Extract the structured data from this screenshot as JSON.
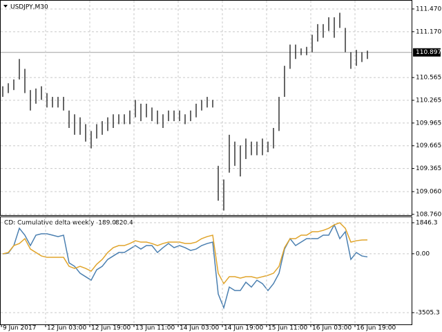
{
  "chart_data": [
    {
      "type": "hilo",
      "title": "USDJPY,M30",
      "color": "#000000",
      "high": [
        110.45,
        110.49,
        110.54,
        110.81,
        110.68,
        110.4,
        110.42,
        110.45,
        110.36,
        110.31,
        110.31,
        110.31,
        110.13,
        110.08,
        110.04,
        109.95,
        109.86,
        109.95,
        109.99,
        110.04,
        110.08,
        110.08,
        110.08,
        110.13,
        110.27,
        110.22,
        110.22,
        110.17,
        110.13,
        110.08,
        110.13,
        110.13,
        110.13,
        110.08,
        110.13,
        110.22,
        110.27,
        110.31,
        110.27,
        109.4,
        109.22,
        109.81,
        109.72,
        109.67,
        109.76,
        109.72,
        109.72,
        109.76,
        109.72,
        109.9,
        110.31,
        110.72,
        111.0,
        111.0,
        110.95,
        110.97,
        111.13,
        111.27,
        111.27,
        111.36,
        111.36,
        111.42,
        111.22,
        110.9,
        110.93,
        110.9,
        110.92
      ],
      "low": [
        110.31,
        110.36,
        110.4,
        110.54,
        110.36,
        110.13,
        110.22,
        110.27,
        110.17,
        110.17,
        110.17,
        110.13,
        109.9,
        109.81,
        109.81,
        109.72,
        109.63,
        109.76,
        109.81,
        109.86,
        109.9,
        109.95,
        109.95,
        109.95,
        110.04,
        109.99,
        110.04,
        109.99,
        109.95,
        109.9,
        109.99,
        109.99,
        109.99,
        109.95,
        109.99,
        110.04,
        110.13,
        110.17,
        110.17,
        108.94,
        108.81,
        109.31,
        109.4,
        109.26,
        109.49,
        109.54,
        109.54,
        109.54,
        109.58,
        109.63,
        109.86,
        110.31,
        110.68,
        110.81,
        110.86,
        110.86,
        110.9,
        111.04,
        111.09,
        111.18,
        111.09,
        111.22,
        110.9,
        110.68,
        110.72,
        110.77,
        110.81
      ],
      "last_price": 110.897,
      "ylim": [
        108.75,
        111.57
      ],
      "yticks": [
        {
          "value": 111.47,
          "label": "111.470"
        },
        {
          "value": 111.17,
          "label": "111.170"
        },
        110.565,
        110.265,
        109.965,
        109.665,
        109.365,
        {
          "value": 109.06,
          "label": "109.060"
        },
        {
          "value": 108.76,
          "label": "108.760"
        }
      ],
      "grid": true
    },
    {
      "type": "line",
      "title": "CD: Cumulative delta weekly",
      "series": [
        {
          "name": "blue",
          "color": "#4a7fb0",
          "last_label": "-189.0",
          "values": [
            -8,
            33,
            486,
            1515,
            1104,
            486,
            1104,
            1186,
            1186,
            1104,
            1021,
            1104,
            -543,
            -749,
            -1161,
            -1367,
            -1573,
            -955,
            -749,
            -338,
            -132,
            74,
            74,
            280,
            486,
            280,
            486,
            486,
            74,
            362,
            610,
            362,
            486,
            362,
            198,
            280,
            486,
            610,
            692,
            -2396,
            -3219,
            -1984,
            -2190,
            -2190,
            -1696,
            -1984,
            -1573,
            -1779,
            -2190,
            -1779,
            -1161,
            280,
            898,
            486,
            692,
            898,
            898,
            898,
            1104,
            1104,
            1721,
            898,
            1309,
            -338,
            74,
            -132,
            -189
          ]
        },
        {
          "name": "orange",
          "color": "#e0a42a",
          "last_label": "820.4",
          "values": [
            -8,
            74,
            486,
            610,
            898,
            280,
            74,
            -132,
            -214,
            -214,
            -214,
            -214,
            -749,
            -873,
            -749,
            -873,
            -1037,
            -626,
            -338,
            74,
            362,
            486,
            486,
            610,
            774,
            692,
            692,
            610,
            486,
            610,
            692,
            692,
            692,
            610,
            610,
            692,
            898,
            1021,
            1104,
            -1161,
            -1779,
            -1367,
            -1367,
            -1449,
            -1367,
            -1367,
            -1449,
            -1367,
            -1285,
            -1161,
            -749,
            362,
            898,
            898,
            1104,
            1104,
            1309,
            1309,
            1392,
            1515,
            1721,
            1844,
            1515,
            692,
            774,
            815,
            820.4
          ]
        }
      ],
      "ylim": [
        -4164,
        2176
      ],
      "yticks": [
        1846.3,
        {
          "value": 0,
          "label": "0.00"
        },
        -3505.3
      ],
      "grid": true,
      "x_labels": [
        "9 Jun 2017",
        "12 Jun 03:00",
        "12 Jun 19:00",
        "13 Jun 11:00",
        "14 Jun 03:00",
        "14 Jun 19:00",
        "15 Jun 11:00",
        "16 Jun 03:00",
        "16 Jun 19:00"
      ]
    }
  ]
}
